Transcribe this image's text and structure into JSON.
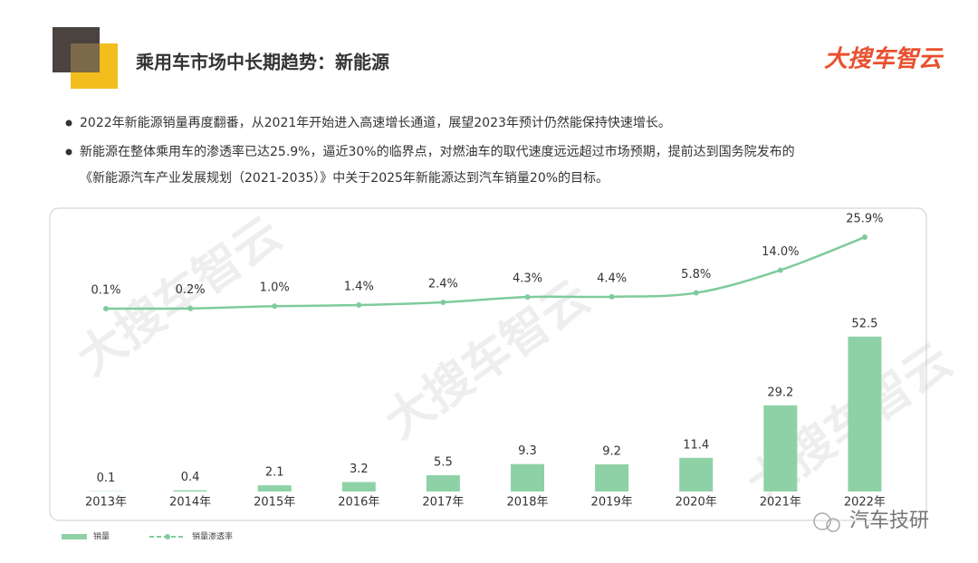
{
  "header": {
    "title": "乘用车市场中长期趋势：新能源",
    "logo": "大搜车智云"
  },
  "bullets": [
    [
      "2022年新能源销量再度翻番，从2021年开始进入高速增长通道，展望2023年预计仍然能保持快速增长。"
    ],
    [
      "新能源在整体乘用车的渗透率已达25.9%，逼近30%的临界点，对燃油车的取代速度远远超过市场预期，提前达到国务院发布的",
      "《新能源汽车产业发展规划（2021-2035）》中关于2025年新能源达到汽车销量20%的目标。"
    ]
  ],
  "chart_data": {
    "type": "bar-line",
    "categories": [
      "2013年",
      "2014年",
      "2015年",
      "2016年",
      "2017年",
      "2018年",
      "2019年",
      "2020年",
      "2021年",
      "2022年"
    ],
    "series": [
      {
        "name": "销量",
        "type": "bar",
        "color": "#8fd1a6",
        "values": [
          0.1,
          0.4,
          2.1,
          3.2,
          5.5,
          9.3,
          9.2,
          11.4,
          29.2,
          52.5
        ]
      },
      {
        "name": "销量渗透率",
        "type": "line",
        "axis": "y2",
        "color": "#7fcb9c",
        "values": [
          0.1,
          0.2,
          1.0,
          1.4,
          2.4,
          4.3,
          4.4,
          5.8,
          14.0,
          25.9
        ],
        "value_labels": [
          "0.1%",
          "0.2%",
          "1.0%",
          "1.4%",
          "2.4%",
          "4.3%",
          "4.4%",
          "5.8%",
          "14.0%",
          "25.9%"
        ]
      }
    ],
    "ylim": [
      0,
      60
    ],
    "y2lim": [
      0,
      30
    ]
  },
  "watermark": "汽车技研"
}
